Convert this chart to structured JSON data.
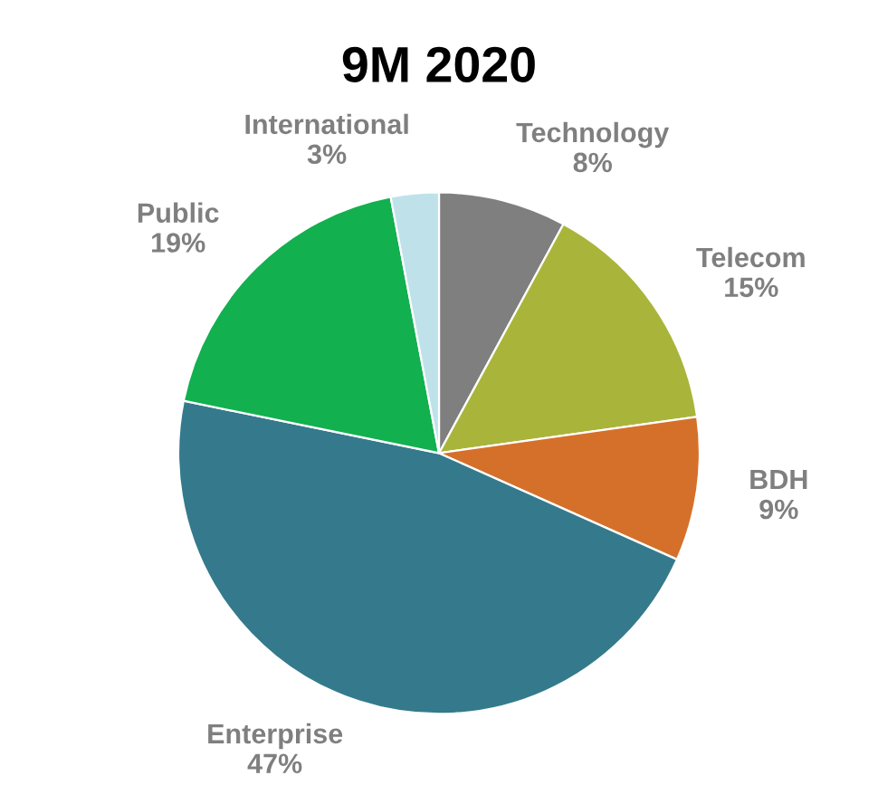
{
  "chart_data": {
    "type": "pie",
    "title": "9M 2020",
    "categories": [
      "Technology",
      "Telecom",
      "BDH",
      "Enterprise",
      "Public",
      "International"
    ],
    "values": [
      8,
      15,
      9,
      47,
      19,
      3
    ],
    "value_labels": [
      "8%",
      "15%",
      "9%",
      "47%",
      "19%",
      "3%"
    ],
    "colors": [
      "#7f7f7f",
      "#a9b53a",
      "#d5702a",
      "#347a8c",
      "#12b04f",
      "#bfe2ea"
    ],
    "legend": false
  }
}
